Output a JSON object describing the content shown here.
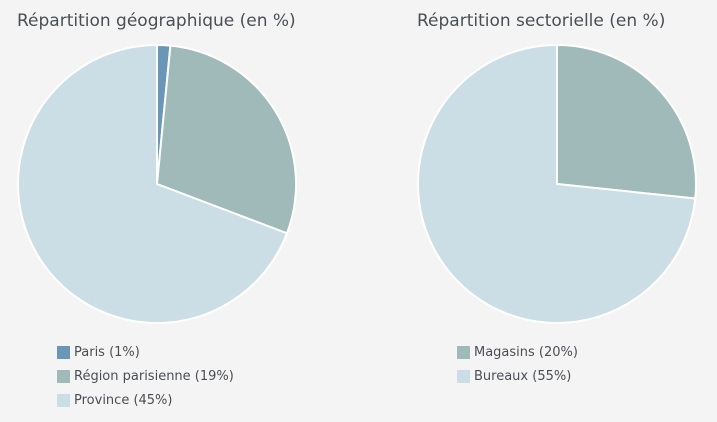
{
  "chart_data": [
    {
      "type": "pie",
      "title": "Répartition géographique (en %)",
      "slices": [
        {
          "label": "Paris (1%)",
          "value": 1,
          "color": "#6a97b7"
        },
        {
          "label": "Région parisienne (19%)",
          "value": 19,
          "color": "#9fbab8"
        },
        {
          "label": "Province (45%)",
          "value": 45,
          "color": "#cbdde5"
        }
      ],
      "legend_position": "bottom-left"
    },
    {
      "type": "pie",
      "title": "Répartition sectorielle (en %)",
      "slices": [
        {
          "label": "Magasins (20%)",
          "value": 20,
          "color": "#9fbab8"
        },
        {
          "label": "Bureaux (55%)",
          "value": 55,
          "color": "#cbdde5"
        }
      ],
      "legend_position": "bottom-left"
    }
  ]
}
